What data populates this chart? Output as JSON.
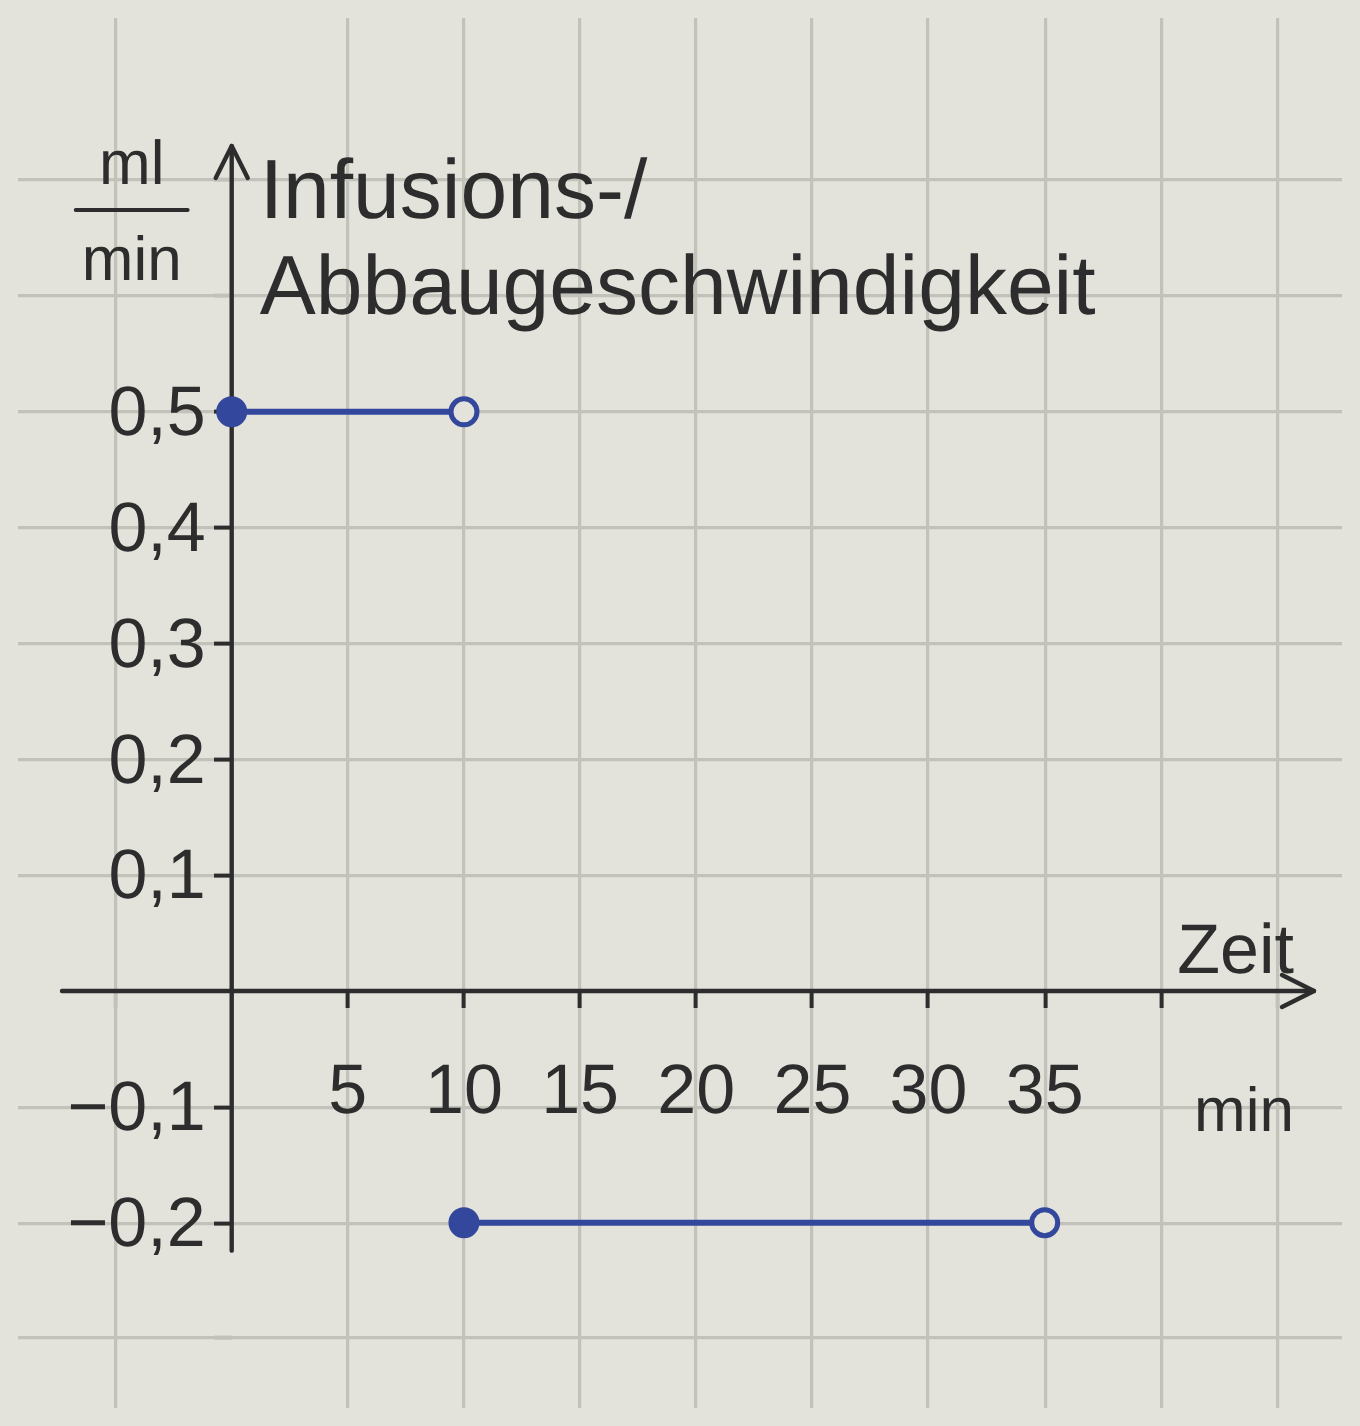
{
  "chart_data": {
    "type": "line",
    "ylabel": "Infusions-/ Abbaugeschwindigkeit",
    "xlabel": "Zeit",
    "annotations": [
      "ml",
      "min",
      "min"
    ],
    "series": [
      {
        "x": [
          0,
          10
        ],
        "values": [
          0.5,
          0.5
        ],
        "color": "#33489c"
      },
      {
        "x": [
          10,
          35
        ],
        "values": [
          -0.2,
          -0.2
        ],
        "color": "#33489c"
      }
    ],
    "xlim": [
      -9.2,
      47.8
    ],
    "ylim": [
      -0.36,
      0.84
    ],
    "xticks": [
      {
        "value": -5,
        "label": null
      },
      5,
      10,
      15,
      20,
      25,
      30,
      35,
      {
        "value": 40,
        "label": null
      },
      {
        "value": 45,
        "label": null
      }
    ],
    "yticks": [
      {
        "value": -0.3,
        "label": null
      },
      {
        "value": -0.2,
        "label": "−0,2"
      },
      {
        "value": -0.1,
        "label": "−0,1"
      },
      {
        "value": 0.1,
        "label": "0,1"
      },
      {
        "value": 0.2,
        "label": "0,2"
      },
      {
        "value": 0.3,
        "label": "0,3"
      },
      {
        "value": 0.4,
        "label": "0,4"
      },
      {
        "value": 0.5,
        "label": "0,5"
      },
      {
        "value": 0.6,
        "label": null
      },
      {
        "value": 0.7,
        "label": null
      }
    ],
    "grid": true,
    "marker": "circle",
    "line_style": "solid"
  }
}
